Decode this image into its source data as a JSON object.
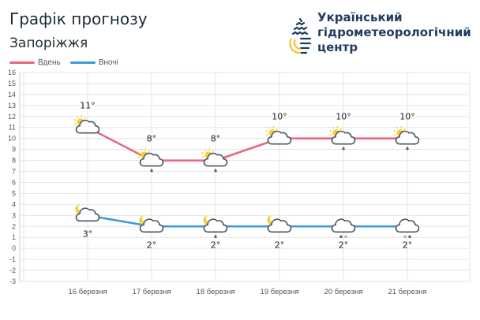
{
  "header": {
    "title": "Графік прогнозу",
    "city": "Запоріжжя"
  },
  "logo": {
    "lines": [
      "Український",
      "гідрометеорологічний",
      "центр"
    ],
    "colors": {
      "navy": "#1e3c5e",
      "yellow": "#f2c230"
    }
  },
  "chart_data": {
    "type": "line",
    "categories": [
      "16 березня",
      "17 березня",
      "18 березня",
      "19 березня",
      "20 березня",
      "21 березня"
    ],
    "series": [
      {
        "name": "Вдень",
        "color": "#e8647f",
        "values": [
          11,
          8,
          8,
          10,
          10,
          10
        ],
        "labels": [
          "11°",
          "8°",
          "8°",
          "10°",
          "10°",
          "10°"
        ],
        "icons": [
          "sun-cloud",
          "sun-cloud-rain",
          "sun-cloud-rain",
          "sun-cloud",
          "sun-cloud-rain",
          "sun-cloud-rain"
        ]
      },
      {
        "name": "Вночі",
        "color": "#3c9ad8",
        "values": [
          3,
          2,
          2,
          2,
          2,
          2
        ],
        "labels": [
          "3°",
          "2°",
          "2°",
          "2°",
          "2°",
          "2°"
        ],
        "icons": [
          "moon-cloud",
          "moon-cloud",
          "moon-cloud-rain",
          "moon-cloud",
          "cloud-rain-snow",
          "cloud-snow-rain"
        ]
      }
    ],
    "yticks": [
      16,
      15,
      14,
      13,
      12,
      11,
      10,
      9,
      8,
      7,
      6,
      5,
      4,
      3,
      2,
      1,
      0,
      -1,
      -2,
      -3
    ],
    "ylim": [
      -3,
      16
    ],
    "grid": true,
    "legend": "top-left"
  }
}
